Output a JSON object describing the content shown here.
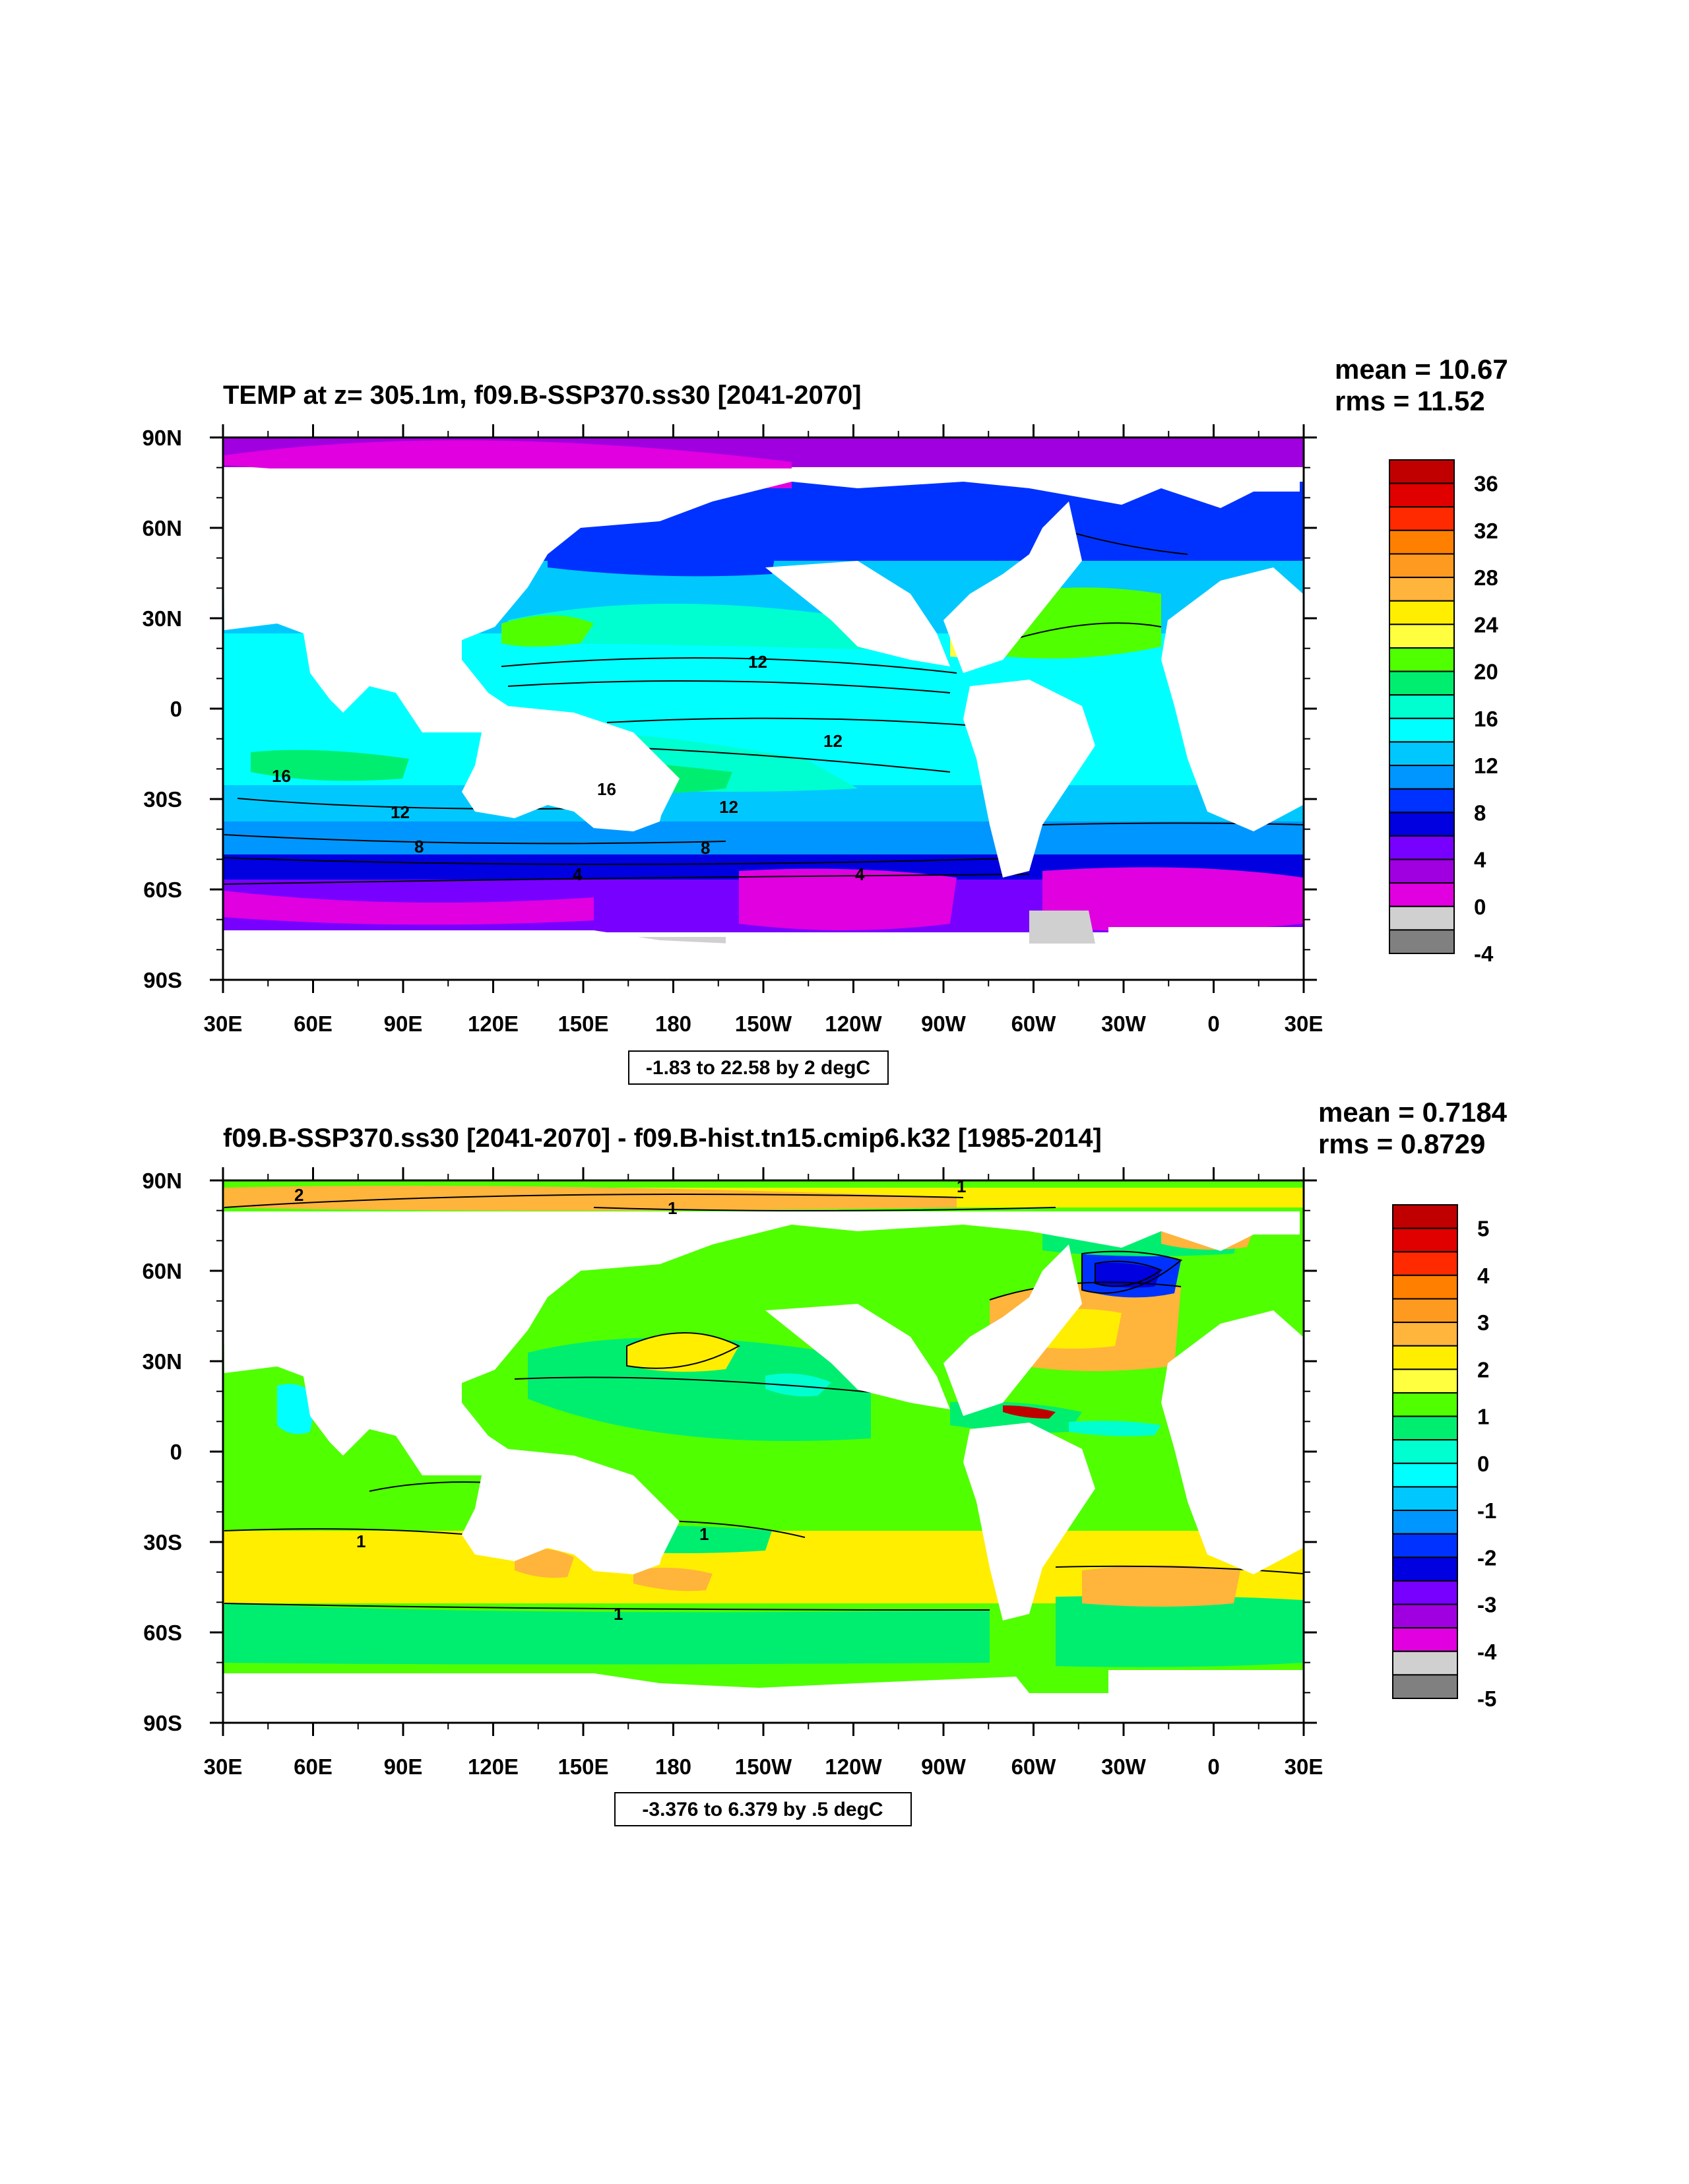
{
  "chart_data": [
    {
      "type": "heatmap",
      "title": "TEMP at z= 305.1m, f09.B-SSP370.ss30 [2041-2070]",
      "stats": {
        "mean": "mean = 10.67",
        "rms": "rms = 11.52"
      },
      "contour_info": "-1.83 to 22.58 by 2 degC",
      "x_tick_labels": [
        "30E",
        "60E",
        "90E",
        "120E",
        "150E",
        "180",
        "150W",
        "120W",
        "90W",
        "60W",
        "30W",
        "0",
        "30E"
      ],
      "y_tick_labels": [
        "90N",
        "60N",
        "30N",
        "0",
        "30S",
        "60S",
        "90S"
      ],
      "xlim": [
        30,
        390
      ],
      "ylim": [
        -90,
        90
      ],
      "colorbar": {
        "labels": [
          "36",
          "32",
          "28",
          "24",
          "20",
          "16",
          "12",
          "8",
          "4",
          "0",
          "-4"
        ],
        "colors": [
          "#c00000",
          "#e00000",
          "#ff2a00",
          "#ff7f00",
          "#ff9a20",
          "#ffb43c",
          "#ffee00",
          "#ffff40",
          "#50ff00",
          "#00ee70",
          "#00ffd0",
          "#00ffff",
          "#00c8ff",
          "#0096ff",
          "#0032ff",
          "#0000e0",
          "#7800ff",
          "#a000e0",
          "#e000e0",
          "#d0d0d0",
          "#808080"
        ]
      },
      "contour_labels": [
        "12",
        "12",
        "12",
        "16",
        "16",
        "12",
        "8",
        "8",
        "4",
        "4"
      ]
    },
    {
      "type": "heatmap",
      "title": "f09.B-SSP370.ss30 [2041-2070] - f09.B-hist.tn15.cmip6.k32 [1985-2014]",
      "stats": {
        "mean": "mean = 0.7184",
        "rms": "rms = 0.8729"
      },
      "contour_info": "-3.376 to 6.379 by .5 degC",
      "x_tick_labels": [
        "30E",
        "60E",
        "90E",
        "120E",
        "150E",
        "180",
        "150W",
        "120W",
        "90W",
        "60W",
        "30W",
        "0",
        "30E"
      ],
      "y_tick_labels": [
        "90N",
        "60N",
        "30N",
        "0",
        "30S",
        "60S",
        "90S"
      ],
      "xlim": [
        30,
        390
      ],
      "ylim": [
        -90,
        90
      ],
      "colorbar": {
        "labels": [
          "5",
          "4",
          "3",
          "2",
          "1",
          "0",
          "-1",
          "-2",
          "-3",
          "-4",
          "-5"
        ],
        "colors": [
          "#c00000",
          "#e00000",
          "#ff2a00",
          "#ff7f00",
          "#ff9a20",
          "#ffb43c",
          "#ffee00",
          "#ffff40",
          "#50ff00",
          "#00ee70",
          "#00ffd0",
          "#00ffff",
          "#00c8ff",
          "#0096ff",
          "#0032ff",
          "#0000e0",
          "#7800ff",
          "#a000e0",
          "#e000e0",
          "#d0d0d0",
          "#808080"
        ]
      },
      "contour_labels": [
        "2",
        "1",
        "1",
        "1",
        "1",
        "1"
      ]
    }
  ]
}
